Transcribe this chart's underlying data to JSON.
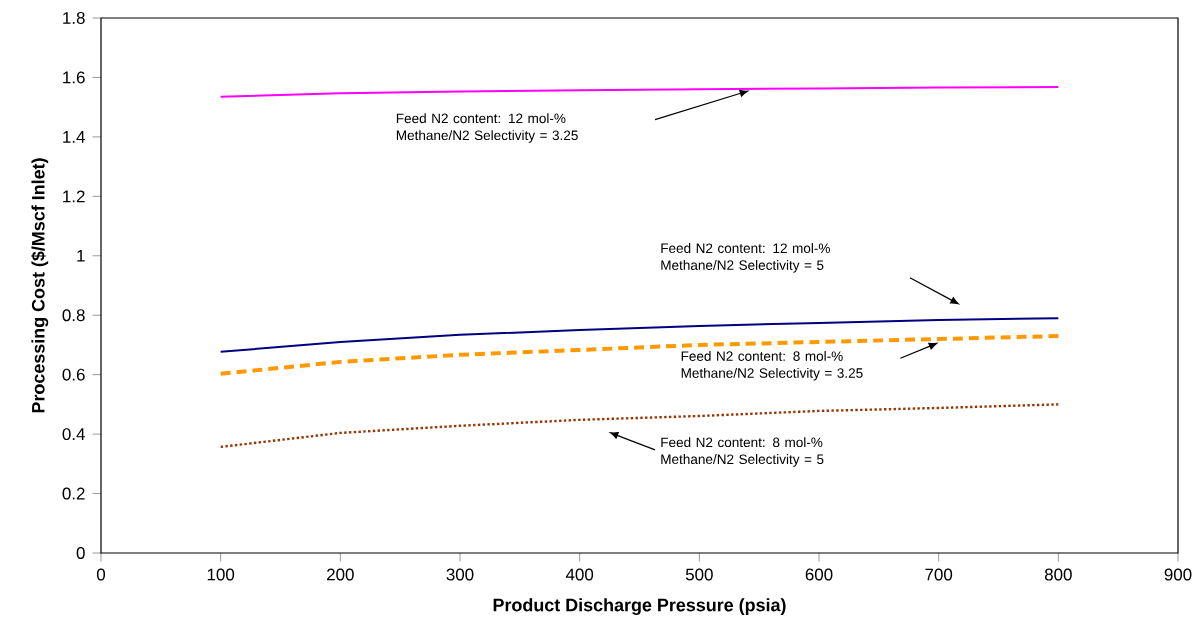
{
  "chart_data": {
    "type": "line",
    "xlabel": "Product Discharge Pressure (psia)",
    "ylabel": "Processing Cost ($/Mscf Inlet)",
    "x": [
      100,
      200,
      300,
      400,
      500,
      600,
      700,
      800
    ],
    "series": [
      {
        "color": "#ff00ff",
        "line_style": "solid",
        "values": [
          1.535,
          1.547,
          1.553,
          1.557,
          1.56,
          1.563,
          1.566,
          1.568
        ]
      },
      {
        "color": "#000080",
        "line_style": "solid",
        "values": [
          0.677,
          0.71,
          0.734,
          0.75,
          0.764,
          0.774,
          0.784,
          0.79
        ]
      },
      {
        "color": "#ff9900",
        "line_style": "dashed",
        "values": [
          0.603,
          0.643,
          0.667,
          0.683,
          0.7,
          0.71,
          0.72,
          0.73
        ]
      },
      {
        "color": "#993300",
        "line_style": "dotted",
        "values": [
          0.357,
          0.404,
          0.428,
          0.448,
          0.461,
          0.478,
          0.488,
          0.5
        ]
      }
    ],
    "xlim": [
      0,
      900
    ],
    "xticks": [
      0,
      100,
      200,
      300,
      400,
      500,
      600,
      700,
      800,
      900
    ],
    "ylim": [
      0,
      1.8
    ],
    "yticks": [
      0,
      0.2,
      0.4,
      0.6,
      0.8,
      1,
      1.2,
      1.4,
      1.6,
      1.8
    ],
    "grid": false,
    "legend": false,
    "marker": "none",
    "annotations": [
      "Feed N2 content: 12 mol-% Methane/N2 Selectivity = 3.25",
      "Feed N2 content: 12 mol-% Methane/N2 Selectivity = 5",
      "Feed N2 content: 8 mol-% Methane/N2 Selectivity = 3.25",
      "Feed N2 content: 8 mol-% Methane/N2 Selectivity = 5"
    ]
  }
}
